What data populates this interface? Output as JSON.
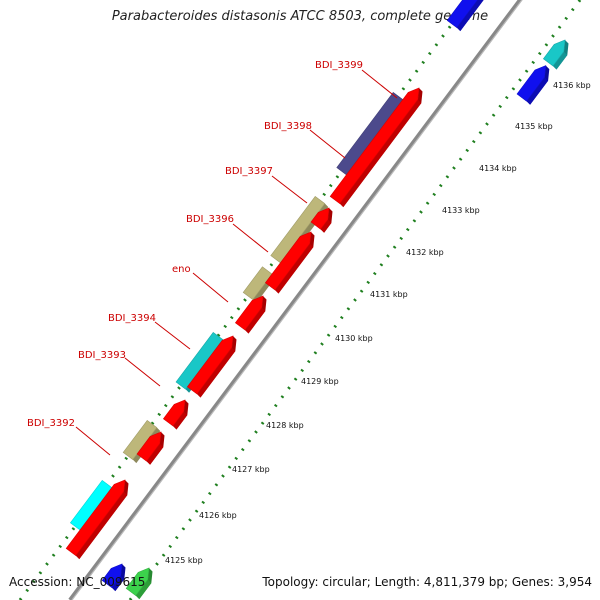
{
  "title": "Parabacteroides distasonis ATCC 8503, complete genome",
  "accession": "Accession: NC_009615",
  "summary": "Topology: circular; Length: 4,811,379 bp; Genes: 3,954",
  "colors": {
    "red": "#ff0000",
    "tan": "#bdb77a",
    "cyan": "#19c7c7",
    "bright_cyan": "#00ffff",
    "navy": "#4c4a8c",
    "blue": "#1010ee",
    "green": "#3cd24c",
    "backbone": "#888888",
    "tick": "#1f7f1f",
    "label": "#cc0000"
  },
  "tick_labels": [
    "4125 kbp",
    "4126 kbp",
    "4127 kbp",
    "4128 kbp",
    "4129 kbp",
    "4130 kbp",
    "4131 kbp",
    "4132 kbp",
    "4133 kbp",
    "4134 kbp",
    "4135 kbp",
    "4136 kbp"
  ],
  "gene_labels": [
    "BDI_3392",
    "BDI_3393",
    "BDI_3394",
    "eno",
    "BDI_3396",
    "BDI_3397",
    "BDI_3398",
    "BDI_3399"
  ]
}
